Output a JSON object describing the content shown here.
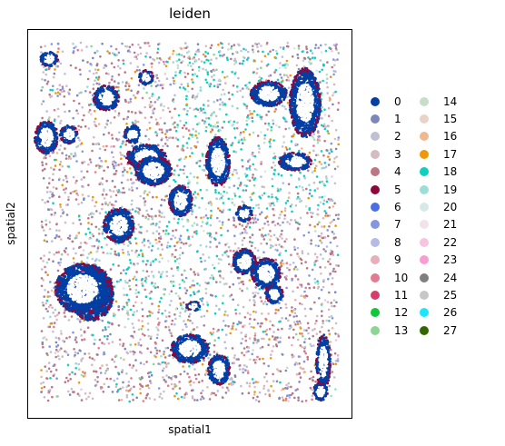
{
  "chart_data": {
    "type": "scatter",
    "title": "leiden",
    "xlabel": "spatial1",
    "ylabel": "spatial2",
    "x_ticks": false,
    "y_ticks": false,
    "legend_placement": "right",
    "legend": [
      {
        "label": "0",
        "color": "#023fa5"
      },
      {
        "label": "1",
        "color": "#7d87b9"
      },
      {
        "label": "2",
        "color": "#bec1d4"
      },
      {
        "label": "3",
        "color": "#d6bcc0"
      },
      {
        "label": "4",
        "color": "#bb7784"
      },
      {
        "label": "5",
        "color": "#8e063b"
      },
      {
        "label": "6",
        "color": "#4a6fe3"
      },
      {
        "label": "7",
        "color": "#8595e1"
      },
      {
        "label": "8",
        "color": "#b5bbe3"
      },
      {
        "label": "9",
        "color": "#e6afb9"
      },
      {
        "label": "10",
        "color": "#e07b91"
      },
      {
        "label": "11",
        "color": "#d33f6a"
      },
      {
        "label": "12",
        "color": "#11c638"
      },
      {
        "label": "13",
        "color": "#8dd593"
      },
      {
        "label": "14",
        "color": "#c6dec7"
      },
      {
        "label": "15",
        "color": "#ead3c6"
      },
      {
        "label": "16",
        "color": "#f0b98d"
      },
      {
        "label": "17",
        "color": "#ef9708"
      },
      {
        "label": "18",
        "color": "#0fcfc0"
      },
      {
        "label": "19",
        "color": "#9cded6"
      },
      {
        "label": "20",
        "color": "#d5eae7"
      },
      {
        "label": "21",
        "color": "#f3e1eb"
      },
      {
        "label": "22",
        "color": "#f6c4e1"
      },
      {
        "label": "23",
        "color": "#f79cd4"
      },
      {
        "label": "24",
        "color": "#7f7f7f"
      },
      {
        "label": "25",
        "color": "#c7c7c7"
      },
      {
        "label": "26",
        "color": "#1ce6ff"
      },
      {
        "label": "27",
        "color": "#336600"
      }
    ]
  }
}
